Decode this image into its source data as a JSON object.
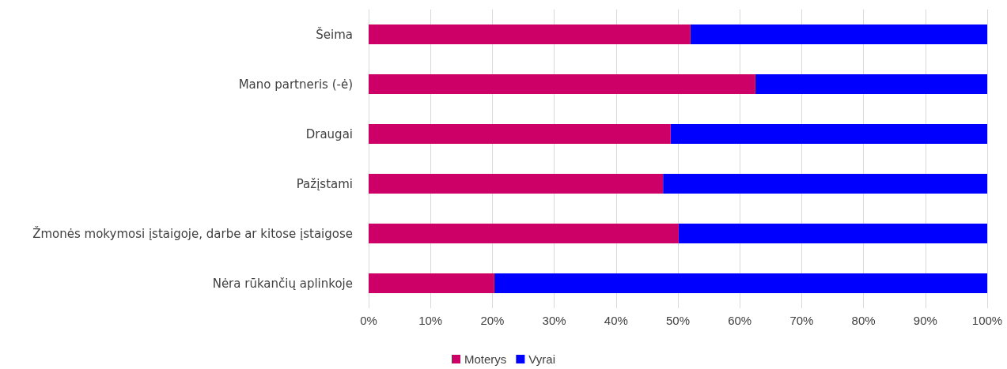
{
  "chart_data": {
    "type": "bar",
    "orientation": "horizontal",
    "stacked": true,
    "categories": [
      "Šeima",
      "Mano partneris (-ė)",
      "Draugai",
      "Pažįstami",
      "Žmonės mokymosi įstaigoje, darbe ar kitose įstaigose",
      "Nėra rūkančių aplinkoje"
    ],
    "series": [
      {
        "name": "Moterys",
        "color": "#cc0066",
        "values": [
          52,
          62.5,
          48.8,
          47.6,
          50.1,
          20.3
        ]
      },
      {
        "name": "Vyrai",
        "color": "#0000ff",
        "values": [
          48,
          37.5,
          51.2,
          52.4,
          49.9,
          79.7
        ]
      }
    ],
    "xlim": [
      0,
      100
    ],
    "xticks": [
      {
        "value": 0,
        "label": "0%"
      },
      {
        "value": 10,
        "label": "10%"
      },
      {
        "value": 20,
        "label": "20%"
      },
      {
        "value": 30,
        "label": "30%"
      },
      {
        "value": 40,
        "label": "40%"
      },
      {
        "value": 50,
        "label": "50%"
      },
      {
        "value": 60,
        "label": "60%"
      },
      {
        "value": 70,
        "label": "70%"
      },
      {
        "value": 80,
        "label": "80%"
      },
      {
        "value": 90,
        "label": "90%"
      },
      {
        "value": 100,
        "label": "100%"
      }
    ],
    "grid": "x",
    "legend": "bottom"
  }
}
